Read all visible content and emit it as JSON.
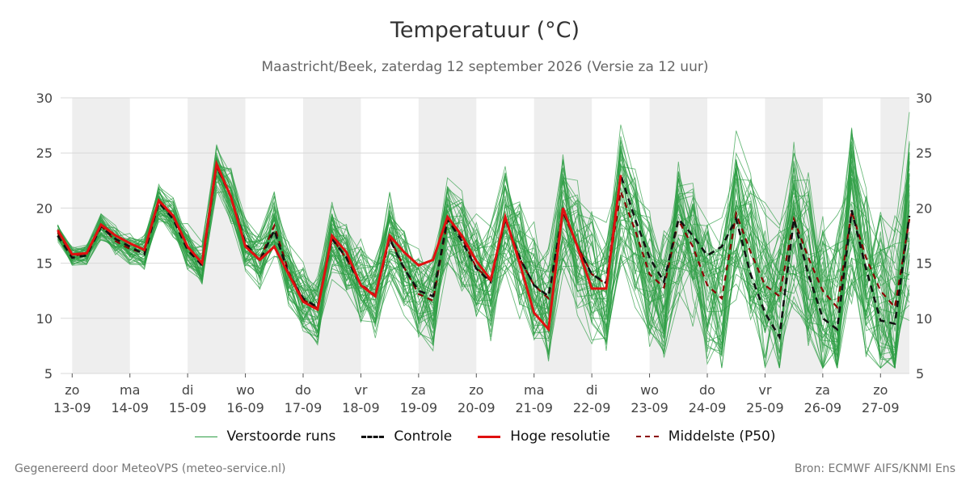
{
  "title": "Temperatuur (°C)",
  "subtitle": "Maastricht/Beek, zaterdag 12 september 2026 (Versie za 12 uur)",
  "footer": {
    "left": "Gegenereerd door MeteoVPS (meteo-service.nl)",
    "right": "Bron: ECMWF AIFS/KNMI Ens"
  },
  "legend": [
    {
      "label": "Verstoorde runs",
      "color": "#2e9e44",
      "style": "thin"
    },
    {
      "label": "Controle",
      "color": "#111111",
      "style": "dashed"
    },
    {
      "label": "Hoge resolutie",
      "color": "#e01010",
      "style": "solid"
    },
    {
      "label": "Middelste (P50)",
      "color": "#8b0000",
      "style": "dashed"
    }
  ],
  "chart_data": {
    "type": "line",
    "ylim": [
      5,
      30
    ],
    "yticks": [
      5,
      10,
      15,
      20,
      25,
      30
    ],
    "grid": true,
    "legend_position": "bottom",
    "xlim_days": [
      -0.2,
      14.5
    ],
    "x_ticks": [
      {
        "day": "zo",
        "date": "13-09"
      },
      {
        "day": "ma",
        "date": "14-09"
      },
      {
        "day": "di",
        "date": "15-09"
      },
      {
        "day": "wo",
        "date": "16-09"
      },
      {
        "day": "do",
        "date": "17-09"
      },
      {
        "day": "vr",
        "date": "18-09"
      },
      {
        "day": "za",
        "date": "19-09"
      },
      {
        "day": "zo",
        "date": "20-09"
      },
      {
        "day": "ma",
        "date": "21-09"
      },
      {
        "day": "di",
        "date": "22-09"
      },
      {
        "day": "wo",
        "date": "23-09"
      },
      {
        "day": "do",
        "date": "24-09"
      },
      {
        "day": "vr",
        "date": "25-09"
      },
      {
        "day": "za",
        "date": "26-09"
      },
      {
        "day": "zo",
        "date": "27-09"
      }
    ],
    "shaded_days": [
      "13-09",
      "15-09",
      "17-09",
      "19-09",
      "21-09",
      "23-09",
      "25-09",
      "27-09"
    ],
    "colors": {
      "ensemble": "#2e9e44",
      "control": "#111111",
      "high_res": "#e01010",
      "p50": "#8b0000",
      "shade": "#eeeeee"
    },
    "series_step_days": 0.25,
    "series_start_day": -0.25,
    "series": [
      {
        "name": "Hoge resolutie",
        "values": [
          18.0,
          15.8,
          15.9,
          18.5,
          17.5,
          16.8,
          16.2,
          20.7,
          19.3,
          16.5,
          15.0,
          24.0,
          21.0,
          16.5,
          15.3,
          16.5,
          14.0,
          11.5,
          10.8,
          17.5,
          16.0,
          13.0,
          12.0,
          17.5,
          16.0,
          14.8,
          15.3,
          19.2,
          17.5,
          15.2,
          13.5,
          19.2,
          15.0,
          10.5,
          9.0,
          20.0,
          16.5,
          12.7,
          12.7,
          23.0
        ]
      },
      {
        "name": "Controle",
        "values": [
          17.5,
          15.5,
          15.7,
          18.3,
          17.2,
          16.5,
          15.8,
          20.5,
          19.0,
          16.2,
          14.8,
          23.8,
          21.0,
          16.8,
          15.2,
          18.0,
          14.0,
          11.8,
          11.0,
          17.2,
          15.5,
          13.0,
          12.0,
          17.2,
          14.5,
          12.5,
          12.0,
          19.0,
          17.0,
          14.5,
          13.3,
          19.0,
          15.5,
          13.0,
          12.0,
          19.8,
          16.5,
          14.0,
          13.2,
          23.0,
          19.0,
          15.5,
          13.3,
          19.0,
          17.5,
          15.7,
          16.5,
          19.0,
          14.0,
          10.5,
          8.3,
          19.0,
          14.0,
          10.0,
          9.0,
          19.8,
          14.5,
          9.8,
          9.5,
          19.3
        ]
      },
      {
        "name": "Middelste (P50)",
        "values": [
          17.8,
          15.7,
          15.8,
          18.4,
          17.0,
          16.3,
          15.9,
          20.6,
          19.2,
          16.4,
          14.9,
          23.8,
          21.1,
          16.7,
          15.3,
          18.4,
          14.2,
          11.7,
          10.9,
          17.3,
          15.4,
          13.1,
          12.1,
          17.3,
          14.6,
          12.2,
          11.6,
          18.9,
          17.3,
          14.6,
          13.4,
          19.1,
          15.4,
          13.0,
          11.8,
          19.6,
          16.6,
          14.0,
          13.1,
          21.5,
          18.0,
          14.0,
          12.8,
          18.9,
          16.5,
          13.0,
          11.8,
          19.5,
          16.0,
          13.0,
          12.0,
          19.0,
          15.5,
          12.5,
          11.0,
          19.7,
          15.5,
          12.5,
          11.0,
          19.0
        ]
      }
    ]
  }
}
